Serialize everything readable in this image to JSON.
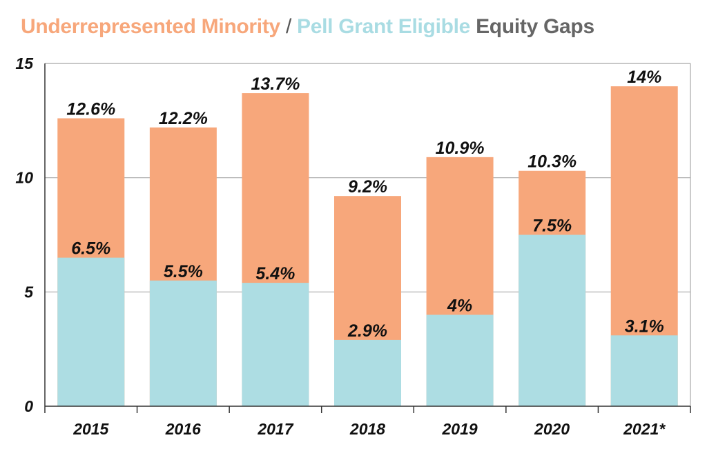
{
  "title": {
    "part1": "Underrepresented Minority",
    "sep": " / ",
    "part2": "Pell Grant Eligible",
    "part3": " Equity Gaps"
  },
  "colors": {
    "urm": "#f7a77b",
    "pell": "#addde3",
    "grid": "#a8a8a8",
    "axis": "#333333",
    "text": "#111111"
  },
  "chart_data": {
    "type": "bar",
    "title": "Underrepresented Minority / Pell Grant Eligible Equity Gaps",
    "categories": [
      "2015",
      "2016",
      "2017",
      "2018",
      "2019",
      "2020",
      "2021*"
    ],
    "series": [
      {
        "name": "Underrepresented Minority",
        "values": [
          12.6,
          12.2,
          13.7,
          9.2,
          10.9,
          10.3,
          14
        ],
        "labels": [
          "12.6%",
          "12.2%",
          "13.7%",
          "9.2%",
          "10.9%",
          "10.3%",
          "14%"
        ]
      },
      {
        "name": "Pell Grant Eligible",
        "values": [
          6.5,
          5.5,
          5.4,
          2.9,
          4,
          7.5,
          3.1
        ],
        "labels": [
          "6.5%",
          "5.5%",
          "5.4%",
          "2.9%",
          "4%",
          "7.5%",
          "3.1%"
        ]
      }
    ],
    "yticks": [
      "0",
      "5",
      "10",
      "15"
    ],
    "ylim": [
      0,
      15
    ],
    "xlabel": "",
    "ylabel": "",
    "grid": true
  }
}
